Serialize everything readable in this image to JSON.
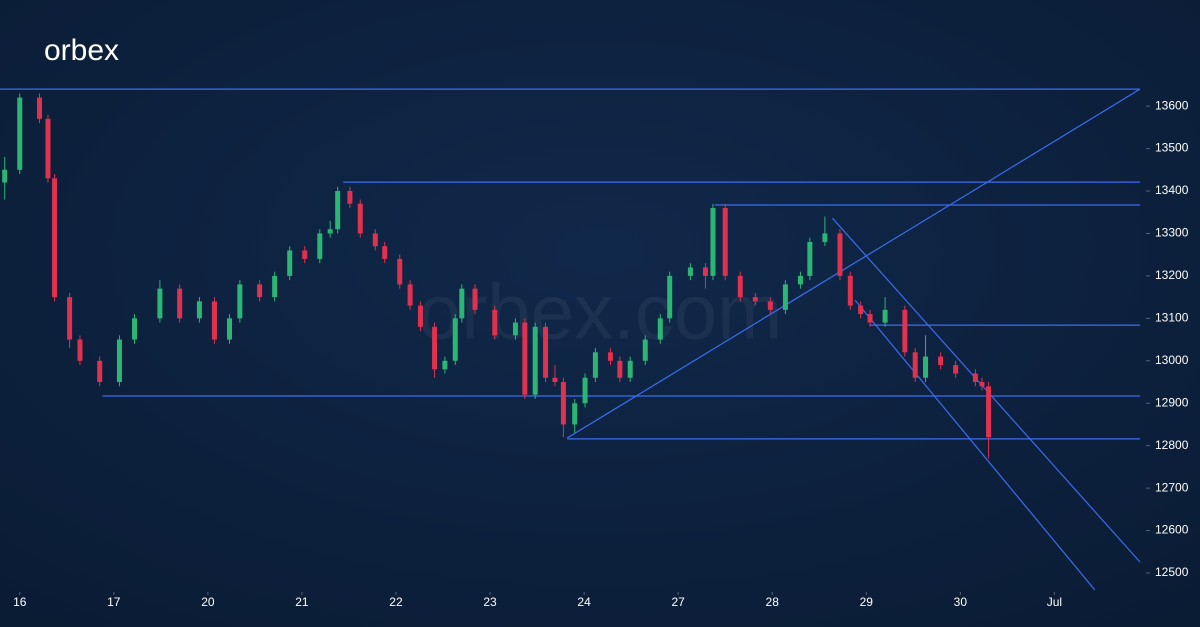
{
  "brand": "orbex",
  "watermark": "orbex.com",
  "chart_data": {
    "type": "candlestick",
    "up_color": "#2bb673",
    "down_color": "#e0314f",
    "line_color": "#3d6cf0",
    "xlim": [
      -0.21,
      11.91
    ],
    "ylim": [
      12460,
      13850
    ],
    "xticks": [
      {
        "value": 0,
        "label": "16"
      },
      {
        "value": 1,
        "label": "17"
      },
      {
        "value": 2,
        "label": "20"
      },
      {
        "value": 3,
        "label": "21"
      },
      {
        "value": 4,
        "label": "22"
      },
      {
        "value": 5,
        "label": "23"
      },
      {
        "value": 6,
        "label": "24"
      },
      {
        "value": 7,
        "label": "27"
      },
      {
        "value": 8,
        "label": "28"
      },
      {
        "value": 9,
        "label": "29"
      },
      {
        "value": 10,
        "label": "30"
      },
      {
        "value": 11,
        "label": "Jul"
      }
    ],
    "yticks": [
      12500,
      12600,
      12700,
      12800,
      12900,
      13000,
      13100,
      13200,
      13300,
      13400,
      13500,
      13600
    ],
    "x": [
      -0.16,
      0,
      0.21,
      0.3,
      0.37,
      0.53,
      0.64,
      0.85,
      1.06,
      1.22,
      1.49,
      1.7,
      1.91,
      2.07,
      2.23,
      2.34,
      2.55,
      2.71,
      2.87,
      3.03,
      3.19,
      3.3,
      3.38,
      3.51,
      3.62,
      3.78,
      3.88,
      4.04,
      4.15,
      4.26,
      4.41,
      4.52,
      4.63,
      4.7,
      4.84,
      5.05,
      5.27,
      5.37,
      5.48,
      5.59,
      5.69,
      5.78,
      5.9,
      6.01,
      6.12,
      6.28,
      6.38,
      6.49,
      6.65,
      6.81,
      6.91,
      7.13,
      7.29,
      7.37,
      7.5,
      7.66,
      7.82,
      7.98,
      8.14,
      8.3,
      8.4,
      8.56,
      8.72,
      8.83,
      8.94,
      9.04,
      9.2,
      9.41,
      9.52,
      9.63,
      9.79,
      9.95,
      10.16,
      10.23,
      10.3
    ],
    "ohlc": [
      [
        13420,
        13480,
        13380,
        13450
      ],
      [
        13450,
        13630,
        13440,
        13620
      ],
      [
        13620,
        13630,
        13560,
        13570
      ],
      [
        13570,
        13580,
        13420,
        13430
      ],
      [
        13430,
        13440,
        13140,
        13150
      ],
      [
        13150,
        13160,
        13030,
        13050
      ],
      [
        13050,
        13060,
        12990,
        13000
      ],
      [
        13000,
        13010,
        12940,
        12950
      ],
      [
        12950,
        13060,
        12940,
        13050
      ],
      [
        13050,
        13110,
        13040,
        13100
      ],
      [
        13100,
        13190,
        13090,
        13170
      ],
      [
        13170,
        13180,
        13090,
        13100
      ],
      [
        13100,
        13150,
        13090,
        13140
      ],
      [
        13140,
        13150,
        13040,
        13050
      ],
      [
        13050,
        13110,
        13040,
        13100
      ],
      [
        13100,
        13190,
        13090,
        13180
      ],
      [
        13180,
        13190,
        13140,
        13150
      ],
      [
        13150,
        13210,
        13140,
        13200
      ],
      [
        13200,
        13270,
        13190,
        13260
      ],
      [
        13260,
        13270,
        13230,
        13240
      ],
      [
        13240,
        13310,
        13230,
        13300
      ],
      [
        13300,
        13330,
        13290,
        13310
      ],
      [
        13310,
        13410,
        13300,
        13400
      ],
      [
        13400,
        13410,
        13360,
        13370
      ],
      [
        13370,
        13380,
        13290,
        13300
      ],
      [
        13300,
        13310,
        13260,
        13270
      ],
      [
        13270,
        13280,
        13230,
        13240
      ],
      [
        13240,
        13250,
        13170,
        13180
      ],
      [
        13180,
        13190,
        13120,
        13130
      ],
      [
        13130,
        13140,
        13070,
        13080
      ],
      [
        13080,
        13090,
        12960,
        12980
      ],
      [
        12980,
        13010,
        12970,
        13000
      ],
      [
        13000,
        13110,
        12990,
        13100
      ],
      [
        13100,
        13180,
        13090,
        13170
      ],
      [
        13170,
        13180,
        13110,
        13120
      ],
      [
        13120,
        13130,
        13050,
        13060
      ],
      [
        13060,
        13100,
        13050,
        13090
      ],
      [
        13090,
        13100,
        12910,
        12920
      ],
      [
        12920,
        13090,
        12910,
        13080
      ],
      [
        13080,
        13090,
        12950,
        12960
      ],
      [
        12960,
        12990,
        12940,
        12950
      ],
      [
        12950,
        12960,
        12820,
        12850
      ],
      [
        12850,
        12910,
        12830,
        12900
      ],
      [
        12900,
        12970,
        12890,
        12960
      ],
      [
        12960,
        13030,
        12950,
        13020
      ],
      [
        13020,
        13030,
        12990,
        13000
      ],
      [
        13000,
        13010,
        12950,
        12960
      ],
      [
        12960,
        13010,
        12950,
        13000
      ],
      [
        13000,
        13060,
        12990,
        13050
      ],
      [
        13050,
        13110,
        13040,
        13100
      ],
      [
        13100,
        13210,
        13090,
        13200
      ],
      [
        13200,
        13230,
        13190,
        13220
      ],
      [
        13220,
        13230,
        13170,
        13200
      ],
      [
        13200,
        13370,
        13190,
        13360
      ],
      [
        13360,
        13370,
        13190,
        13200
      ],
      [
        13200,
        13210,
        13140,
        13150
      ],
      [
        13150,
        13160,
        13130,
        13140
      ],
      [
        13140,
        13150,
        13110,
        13120
      ],
      [
        13120,
        13190,
        13110,
        13180
      ],
      [
        13180,
        13210,
        13170,
        13200
      ],
      [
        13200,
        13290,
        13190,
        13280
      ],
      [
        13280,
        13340,
        13270,
        13300
      ],
      [
        13300,
        13310,
        13190,
        13200
      ],
      [
        13200,
        13210,
        13120,
        13130
      ],
      [
        13130,
        13140,
        13100,
        13110
      ],
      [
        13110,
        13120,
        13080,
        13090
      ],
      [
        13090,
        13150,
        13080,
        13120
      ],
      [
        13120,
        13130,
        13010,
        13020
      ],
      [
        13020,
        13030,
        12950,
        12960
      ],
      [
        12960,
        13060,
        12950,
        13010
      ],
      [
        13010,
        13020,
        12980,
        12990
      ],
      [
        12990,
        13000,
        12960,
        12970
      ],
      [
        12970,
        12980,
        12940,
        12950
      ],
      [
        12950,
        12960,
        12930,
        12940
      ],
      [
        12940,
        12950,
        12770,
        12820
      ]
    ],
    "lines": [
      {
        "x": [
          -0.21,
          11.91
        ],
        "y": [
          13640,
          13640
        ]
      },
      {
        "x": [
          5.82,
          11.91
        ],
        "y": [
          12818,
          13640
        ]
      },
      {
        "x": [
          3.44,
          11.91
        ],
        "y": [
          13421,
          13421
        ]
      },
      {
        "x": [
          7.39,
          11.91
        ],
        "y": [
          13367,
          13367
        ]
      },
      {
        "x": [
          0.88,
          11.91
        ],
        "y": [
          12917,
          12917
        ]
      },
      {
        "x": [
          5.82,
          11.91
        ],
        "y": [
          12816,
          12816
        ]
      },
      {
        "x": [
          9.04,
          11.91
        ],
        "y": [
          13084,
          13084
        ]
      },
      {
        "x": [
          8.64,
          11.91
        ],
        "y": [
          13336,
          12526
        ]
      },
      {
        "x": [
          8.88,
          11.43
        ],
        "y": [
          13143,
          12460
        ]
      }
    ]
  }
}
